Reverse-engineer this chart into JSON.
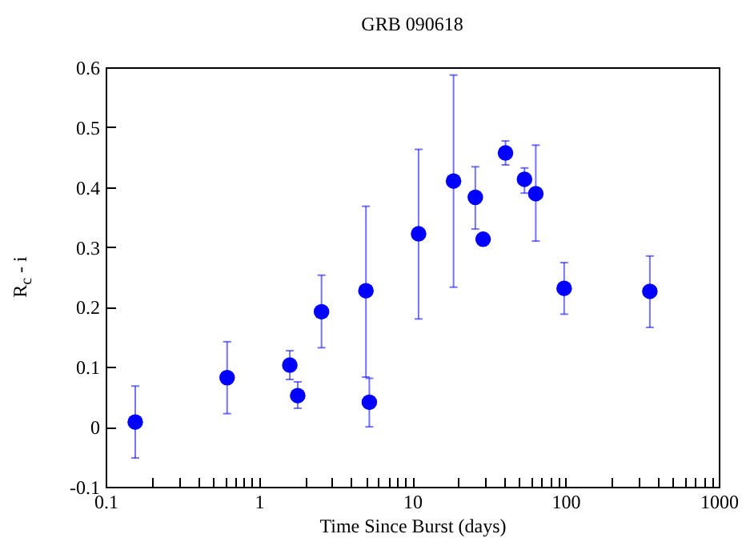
{
  "chart_data": {
    "type": "scatter",
    "title": "GRB 090618",
    "xlabel": "Time Since Burst (days)",
    "ylabel": "R$_{c}$ - i",
    "log": "x",
    "marker": "circle",
    "grid": false,
    "xlim": [
      0.1,
      1000
    ],
    "ylim": [
      -0.1,
      0.6
    ],
    "xticks": [
      0.1,
      {
        "value": 0.2,
        "label": null
      },
      {
        "value": 0.3,
        "label": null
      },
      {
        "value": 0.4,
        "label": null
      },
      {
        "value": 0.5,
        "label": null
      },
      {
        "value": 0.6,
        "label": null
      },
      {
        "value": 0.7,
        "label": null
      },
      {
        "value": 0.8,
        "label": null
      },
      {
        "value": 0.9,
        "label": null
      },
      1,
      {
        "value": 2,
        "label": null
      },
      {
        "value": 3,
        "label": null
      },
      {
        "value": 4,
        "label": null
      },
      {
        "value": 5,
        "label": null
      },
      {
        "value": 6,
        "label": null
      },
      {
        "value": 7,
        "label": null
      },
      {
        "value": 8,
        "label": null
      },
      {
        "value": 9,
        "label": null
      },
      10,
      {
        "value": 20,
        "label": null
      },
      {
        "value": 30,
        "label": null
      },
      {
        "value": 40,
        "label": null
      },
      {
        "value": 50,
        "label": null
      },
      {
        "value": 60,
        "label": null
      },
      {
        "value": 70,
        "label": null
      },
      {
        "value": 80,
        "label": null
      },
      {
        "value": 90,
        "label": null
      },
      100,
      {
        "value": 200,
        "label": null
      },
      {
        "value": 300,
        "label": null
      },
      {
        "value": 400,
        "label": null
      },
      {
        "value": 500,
        "label": null
      },
      {
        "value": 600,
        "label": null
      },
      {
        "value": 700,
        "label": null
      },
      {
        "value": 800,
        "label": null
      },
      {
        "value": 900,
        "label": null
      },
      1000
    ],
    "yticks": [
      -0.1,
      0,
      0.1,
      0.2,
      0.3,
      0.4,
      0.5,
      0.6
    ],
    "series": [
      {
        "color": "#0000ff",
        "x": [
          0.156,
          0.62,
          1.59,
          1.79,
          2.56,
          4.99,
          5.25,
          11,
          18.6,
          25.8,
          29,
          40.6,
          54,
          64,
          98,
          355
        ],
        "values": [
          0.008,
          0.082,
          0.103,
          0.052,
          0.192,
          0.227,
          0.041,
          0.322,
          0.41,
          0.383,
          0.313,
          0.457,
          0.413,
          0.389,
          0.231,
          0.226
        ],
        "errors": [
          [
            -0.052,
            0.068
          ],
          [
            0.022,
            0.142
          ],
          [
            0.079,
            0.127
          ],
          [
            0.031,
            0.075
          ],
          [
            0.132,
            0.253
          ],
          [
            0.083,
            0.368
          ],
          [
            0.0,
            0.081
          ],
          [
            0.18,
            0.463
          ],
          [
            0.233,
            0.587
          ],
          [
            0.33,
            0.434
          ],
          [
            0.303,
            0.32
          ],
          [
            0.437,
            0.477
          ],
          [
            0.39,
            0.432
          ],
          [
            0.31,
            0.47
          ],
          [
            0.188,
            0.274
          ],
          [
            0.166,
            0.285
          ]
        ]
      }
    ]
  }
}
